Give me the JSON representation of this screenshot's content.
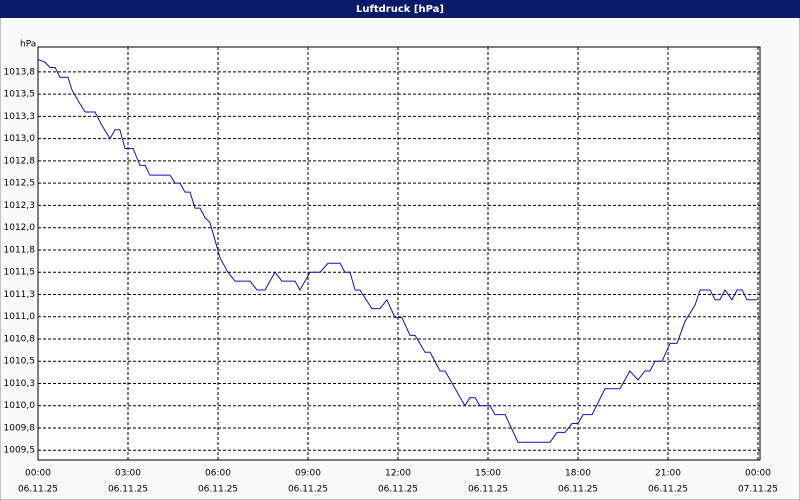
{
  "chart_data": {
    "type": "line",
    "title": "Luftdruck [hPa]",
    "y_unit": "hPa",
    "x": [
      0,
      0.23,
      0.4,
      0.57,
      0.73,
      1.0,
      1.13,
      1.33,
      1.57,
      1.9,
      2.13,
      2.4,
      2.57,
      2.73,
      2.9,
      3.17,
      3.4,
      3.57,
      3.73,
      4.4,
      4.57,
      4.73,
      4.9,
      5.07,
      5.23,
      5.4,
      5.57,
      5.73,
      5.9,
      6.07,
      6.33,
      6.57,
      7.07,
      7.3,
      7.57,
      7.73,
      7.9,
      8.13,
      8.57,
      8.73,
      9.07,
      9.4,
      9.67,
      10.07,
      10.23,
      10.4,
      10.57,
      10.73,
      11.13,
      11.4,
      11.63,
      11.9,
      12.13,
      12.4,
      12.57,
      12.9,
      13.07,
      13.4,
      13.57,
      14.23,
      14.4,
      14.57,
      14.73,
      15.07,
      15.23,
      15.57,
      16,
      17.07,
      17.3,
      17.57,
      17.8,
      18,
      18.17,
      18.47,
      18.9,
      19.4,
      19.73,
      20,
      20.23,
      20.4,
      20.57,
      20.8,
      21.07,
      21.3,
      21.57,
      21.9,
      22.07,
      22.4,
      22.57,
      22.73,
      22.9,
      23.13,
      23.3,
      23.47,
      23.63,
      23.97
    ],
    "series": [
      {
        "name": "Luftdruck",
        "color": "#1010c0",
        "values": [
          1013.89,
          1013.86,
          1013.8,
          1013.8,
          1013.69,
          1013.69,
          1013.55,
          1013.43,
          1013.3,
          1013.3,
          1013.15,
          1013.0,
          1013.1,
          1013.1,
          1012.89,
          1012.89,
          1012.7,
          1012.7,
          1012.59,
          1012.59,
          1012.5,
          1012.5,
          1012.4,
          1012.4,
          1012.22,
          1012.22,
          1012.11,
          1012.06,
          1011.86,
          1011.66,
          1011.5,
          1011.4,
          1011.4,
          1011.3,
          1011.3,
          1011.4,
          1011.5,
          1011.4,
          1011.4,
          1011.3,
          1011.5,
          1011.5,
          1011.6,
          1011.6,
          1011.5,
          1011.5,
          1011.3,
          1011.3,
          1011.09,
          1011.09,
          1011.19,
          1010.99,
          1010.99,
          1010.79,
          1010.79,
          1010.6,
          1010.6,
          1010.39,
          1010.39,
          1010.0,
          1010.09,
          1010.09,
          1010.0,
          1010.0,
          1009.9,
          1009.9,
          1009.59,
          1009.59,
          1009.7,
          1009.7,
          1009.8,
          1009.8,
          1009.9,
          1009.9,
          1010.19,
          1010.19,
          1010.39,
          1010.29,
          1010.39,
          1010.39,
          1010.5,
          1010.5,
          1010.7,
          1010.7,
          1010.95,
          1011.13,
          1011.3,
          1011.3,
          1011.19,
          1011.19,
          1011.3,
          1011.19,
          1011.3,
          1011.3,
          1011.19,
          1011.19
        ]
      }
    ],
    "xlim": [
      0,
      24
    ],
    "xticks": [
      {
        "value": 0,
        "label": "00:00"
      },
      {
        "value": 3,
        "label": "03:00"
      },
      {
        "value": 6,
        "label": "06:00"
      },
      {
        "value": 9,
        "label": "09:00"
      },
      {
        "value": 12,
        "label": "12:00"
      },
      {
        "value": 15,
        "label": "15:00"
      },
      {
        "value": 18,
        "label": "18:00"
      },
      {
        "value": 21,
        "label": "21:00"
      },
      {
        "value": 24,
        "label": "00:00"
      }
    ],
    "xtick_dates": [
      "06.11.25",
      "06.11.25",
      "06.11.25",
      "06.11.25",
      "06.11.25",
      "06.11.25",
      "06.11.25",
      "06.11.25",
      "07.11.25"
    ],
    "ylim": [
      1009.39,
      1014.03
    ],
    "yticks": [
      {
        "value": 1009.5,
        "label": "1009,5"
      },
      {
        "value": 1009.75,
        "label": "1009,8"
      },
      {
        "value": 1010,
        "label": "1010,0"
      },
      {
        "value": 1010.25,
        "label": "1010,3"
      },
      {
        "value": 1010.5,
        "label": "1010,5"
      },
      {
        "value": 1010.75,
        "label": "1010,8"
      },
      {
        "value": 1011,
        "label": "1011,0"
      },
      {
        "value": 1011.25,
        "label": "1011,3"
      },
      {
        "value": 1011.5,
        "label": "1011,5"
      },
      {
        "value": 1011.75,
        "label": "1011,8"
      },
      {
        "value": 1012,
        "label": "1012,0"
      },
      {
        "value": 1012.25,
        "label": "1012,3"
      },
      {
        "value": 1012.5,
        "label": "1012,5"
      },
      {
        "value": 1012.75,
        "label": "1012,8"
      },
      {
        "value": 1013,
        "label": "1013,0"
      },
      {
        "value": 1013.25,
        "label": "1013,3"
      },
      {
        "value": 1013.5,
        "label": "1013,5"
      },
      {
        "value": 1013.75,
        "label": "1013,8"
      }
    ],
    "grid": true
  }
}
